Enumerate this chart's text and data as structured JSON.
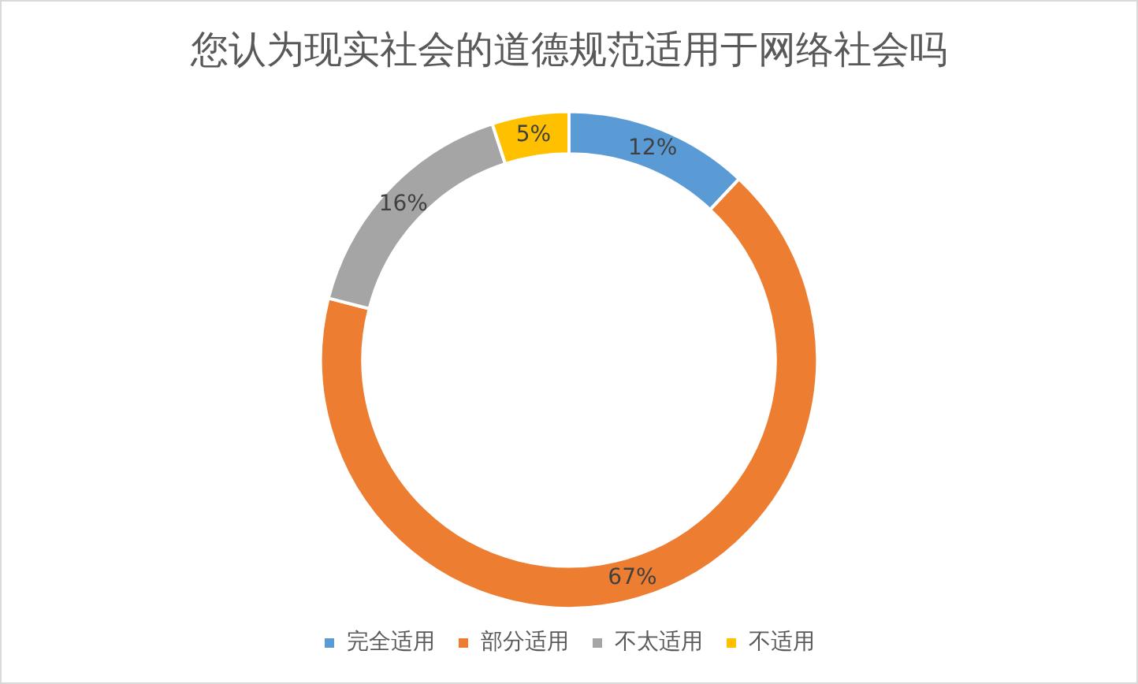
{
  "chart_data": {
    "type": "donut",
    "title": "您认为现实社会的道德规范适用于网络社会吗",
    "categories": [
      "完全适用",
      "部分适用",
      "不太适用",
      "不适用"
    ],
    "values": [
      12,
      67,
      16,
      5
    ],
    "colors": [
      "#5b9bd5",
      "#ed7d31",
      "#a5a5a5",
      "#ffc000"
    ],
    "value_labels": [
      "12%",
      "67%",
      "16%",
      "5%"
    ],
    "legend": "bottom"
  }
}
